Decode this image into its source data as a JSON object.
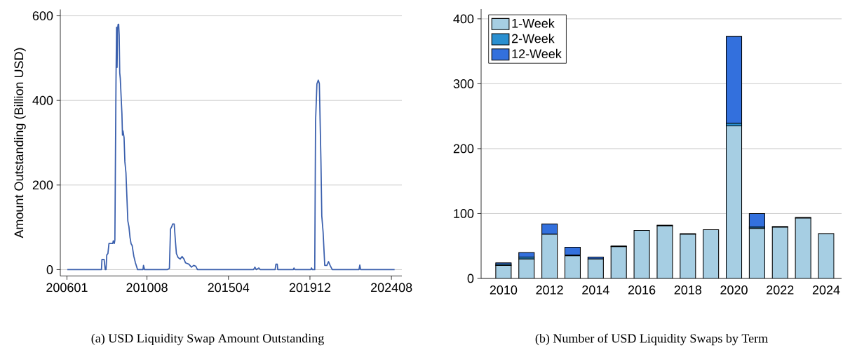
{
  "chart_data": [
    {
      "type": "line",
      "ylabel": "Amount Outstanding (Billion USD)",
      "color": "#3a5fad",
      "x": [
        "2006-01-09",
        "2007-12-23",
        "2008-01-03",
        "2008-02-18",
        "2008-03-10",
        "2008-03-27",
        "2008-04-13",
        "2008-05-06",
        "2008-05-28",
        "2008-08-16",
        "2008-08-27",
        "2008-09-19",
        "2008-09-30",
        "2008-10-23",
        "2008-11-04",
        "2008-11-15",
        "2008-11-26",
        "2008-12-07",
        "2008-12-18",
        "2008-12-29",
        "2009-01-10",
        "2009-01-21",
        "2009-02-14",
        "2009-02-25",
        "2009-03-06",
        "2009-03-17",
        "2009-04-09",
        "2009-04-26",
        "2009-05-18",
        "2009-06-05",
        "2009-06-27",
        "2009-07-19",
        "2009-08-12",
        "2009-09-04",
        "2009-09-26",
        "2009-10-30",
        "2009-12-03",
        "2010-01-18",
        "2010-05-09",
        "2010-05-20",
        "2010-06-12",
        "2011-09-29",
        "2011-11-14",
        "2011-12-06",
        "2012-01-04",
        "2012-01-20",
        "2012-02-23",
        "2012-03-16",
        "2012-04-08",
        "2012-05-11",
        "2012-06-26",
        "2012-08-05",
        "2012-09-14",
        "2012-10-17",
        "2012-12-24",
        "2013-02-19",
        "2013-04-04",
        "2013-05-18",
        "2013-06-22",
        "2016-09-08",
        "2016-10-06",
        "2016-11-04",
        "2016-12-29",
        "2017-01-27",
        "2017-12-03",
        "2017-12-20",
        "2018-01-17",
        "2018-01-28",
        "2018-12-16",
        "2019-01-02",
        "2019-01-19",
        "2019-12-17",
        "2020-01-04",
        "2020-01-20",
        "2020-03-10",
        "2020-03-27",
        "2020-04-25",
        "2020-05-23",
        "2020-06-15",
        "2020-07-18",
        "2020-08-05",
        "2020-09-02",
        "2020-10-06",
        "2020-11-21",
        "2020-12-24",
        "2021-01-27",
        "2021-03-11",
        "2022-09-22",
        "2022-10-09",
        "2022-10-26",
        "2024-10-06"
      ],
      "values": [
        0,
        0,
        24,
        24,
        0,
        0,
        35,
        38,
        62,
        62,
        68,
        62,
        70,
        446,
        573,
        478,
        570,
        580,
        580,
        554,
        465,
        452,
        395,
        369,
        318,
        328,
        312,
        255,
        229,
        178,
        115,
        102,
        76,
        61,
        57,
        32,
        16,
        0,
        0,
        10,
        0,
        0,
        3,
        96,
        102,
        108,
        108,
        70,
        38,
        29,
        25,
        31,
        25,
        16,
        13,
        6,
        10,
        8,
        0,
        0,
        6,
        0,
        4,
        0,
        0,
        13,
        13,
        0,
        0,
        4,
        0,
        0,
        4,
        0,
        0,
        350,
        439,
        448,
        440,
        255,
        127,
        89,
        10,
        10,
        19,
        10,
        0,
        0,
        11,
        0,
        0
      ],
      "xlim": [
        "2005-08-15",
        "2025-03-06"
      ],
      "ylim": [
        -15,
        615
      ],
      "xticks": [
        {
          "value": "2006-01",
          "label": "200601"
        },
        {
          "value": "2010-08",
          "label": "201008"
        },
        {
          "value": "2015-04",
          "label": "201504"
        },
        {
          "value": "2019-12",
          "label": "201912"
        },
        {
          "value": "2024-08",
          "label": "202408"
        }
      ],
      "yticks": [
        0,
        200,
        400,
        600
      ],
      "grid": "y",
      "annotations": [
        "(a) USD Liquidity Swap Amount Outstanding"
      ]
    },
    {
      "type": "bar",
      "stacked": true,
      "legend": "top left",
      "grid": "y",
      "categories": [
        "2010",
        null,
        "2012",
        null,
        "2014",
        null,
        "2016",
        null,
        "2018",
        null,
        "2020",
        null,
        "2022",
        null,
        "2024"
      ],
      "series": [
        {
          "name": "1-Week",
          "color": "#a6cee3",
          "values": [
            20,
            30,
            68,
            35,
            30,
            49,
            74,
            81,
            68,
            75,
            235,
            77,
            79,
            93,
            69
          ]
        },
        {
          "name": "2-Week",
          "color": "#2a8fd0",
          "values": [
            2,
            3,
            null,
            1,
            null,
            1,
            0,
            1,
            1,
            0,
            4,
            2,
            1,
            1,
            0
          ]
        },
        {
          "name": "12-Week",
          "color": "#3370dd",
          "values": [
            2,
            7,
            16,
            12,
            3,
            0,
            0,
            0,
            0,
            0,
            134,
            21,
            0,
            0,
            0
          ]
        }
      ],
      "ylim": [
        0,
        415
      ],
      "yticks": [
        0,
        100,
        200,
        300,
        400
      ],
      "annotations": [
        "(b) Number of USD Liquidity Swaps by Term"
      ]
    }
  ]
}
